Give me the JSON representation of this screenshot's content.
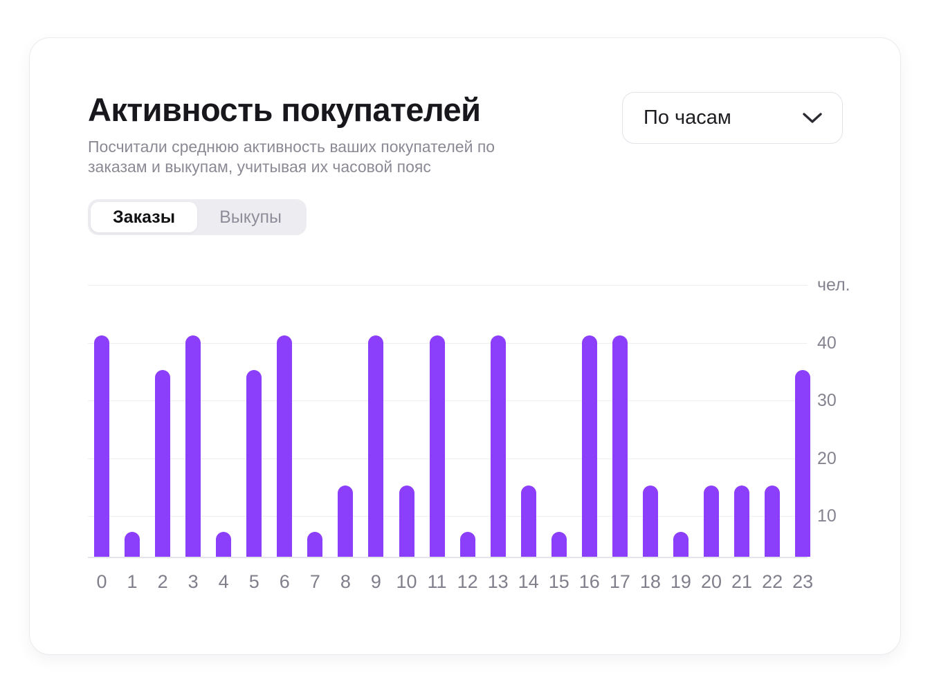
{
  "card": {
    "title": "Активность покупателей",
    "subtitle_lines": [
      "Посчитали среднюю активность ваших покупателей по",
      "заказам и выкупам, учитывая их часовой пояс"
    ],
    "dropdown": {
      "value": "По часам",
      "icon": "chevron-down-icon"
    },
    "tabs": [
      {
        "label": "Заказы",
        "active": true
      },
      {
        "label": "Выкупы",
        "active": false
      }
    ]
  },
  "chart_data": {
    "type": "bar",
    "title": "Активность покупателей",
    "series_name": "Заказы",
    "categories": [
      0,
      1,
      2,
      3,
      4,
      5,
      6,
      7,
      8,
      9,
      10,
      11,
      12,
      13,
      14,
      15,
      16,
      17,
      18,
      19,
      20,
      21,
      22,
      23
    ],
    "values": [
      41,
      7,
      35,
      41,
      7,
      35,
      41,
      7,
      15,
      41,
      15,
      41,
      7,
      41,
      15,
      7,
      41,
      41,
      15,
      7,
      15,
      15,
      15,
      35
    ],
    "xlabel": "",
    "ylabel": "чел.",
    "unit_label": "чел.",
    "y_ticks": [
      10,
      20,
      30,
      40
    ],
    "ylim": [
      0,
      50
    ],
    "grid": true,
    "legend_position": "none",
    "bar_color": "#8B3FFA"
  },
  "colors": {
    "bar": "#8B3FFA",
    "title_text": "#17171c",
    "muted_text": "#8b8994",
    "axis_text": "#807e8a",
    "gridline": "#ededf2",
    "tab_background": "#ededf1",
    "card_border": "#eaeaef"
  }
}
